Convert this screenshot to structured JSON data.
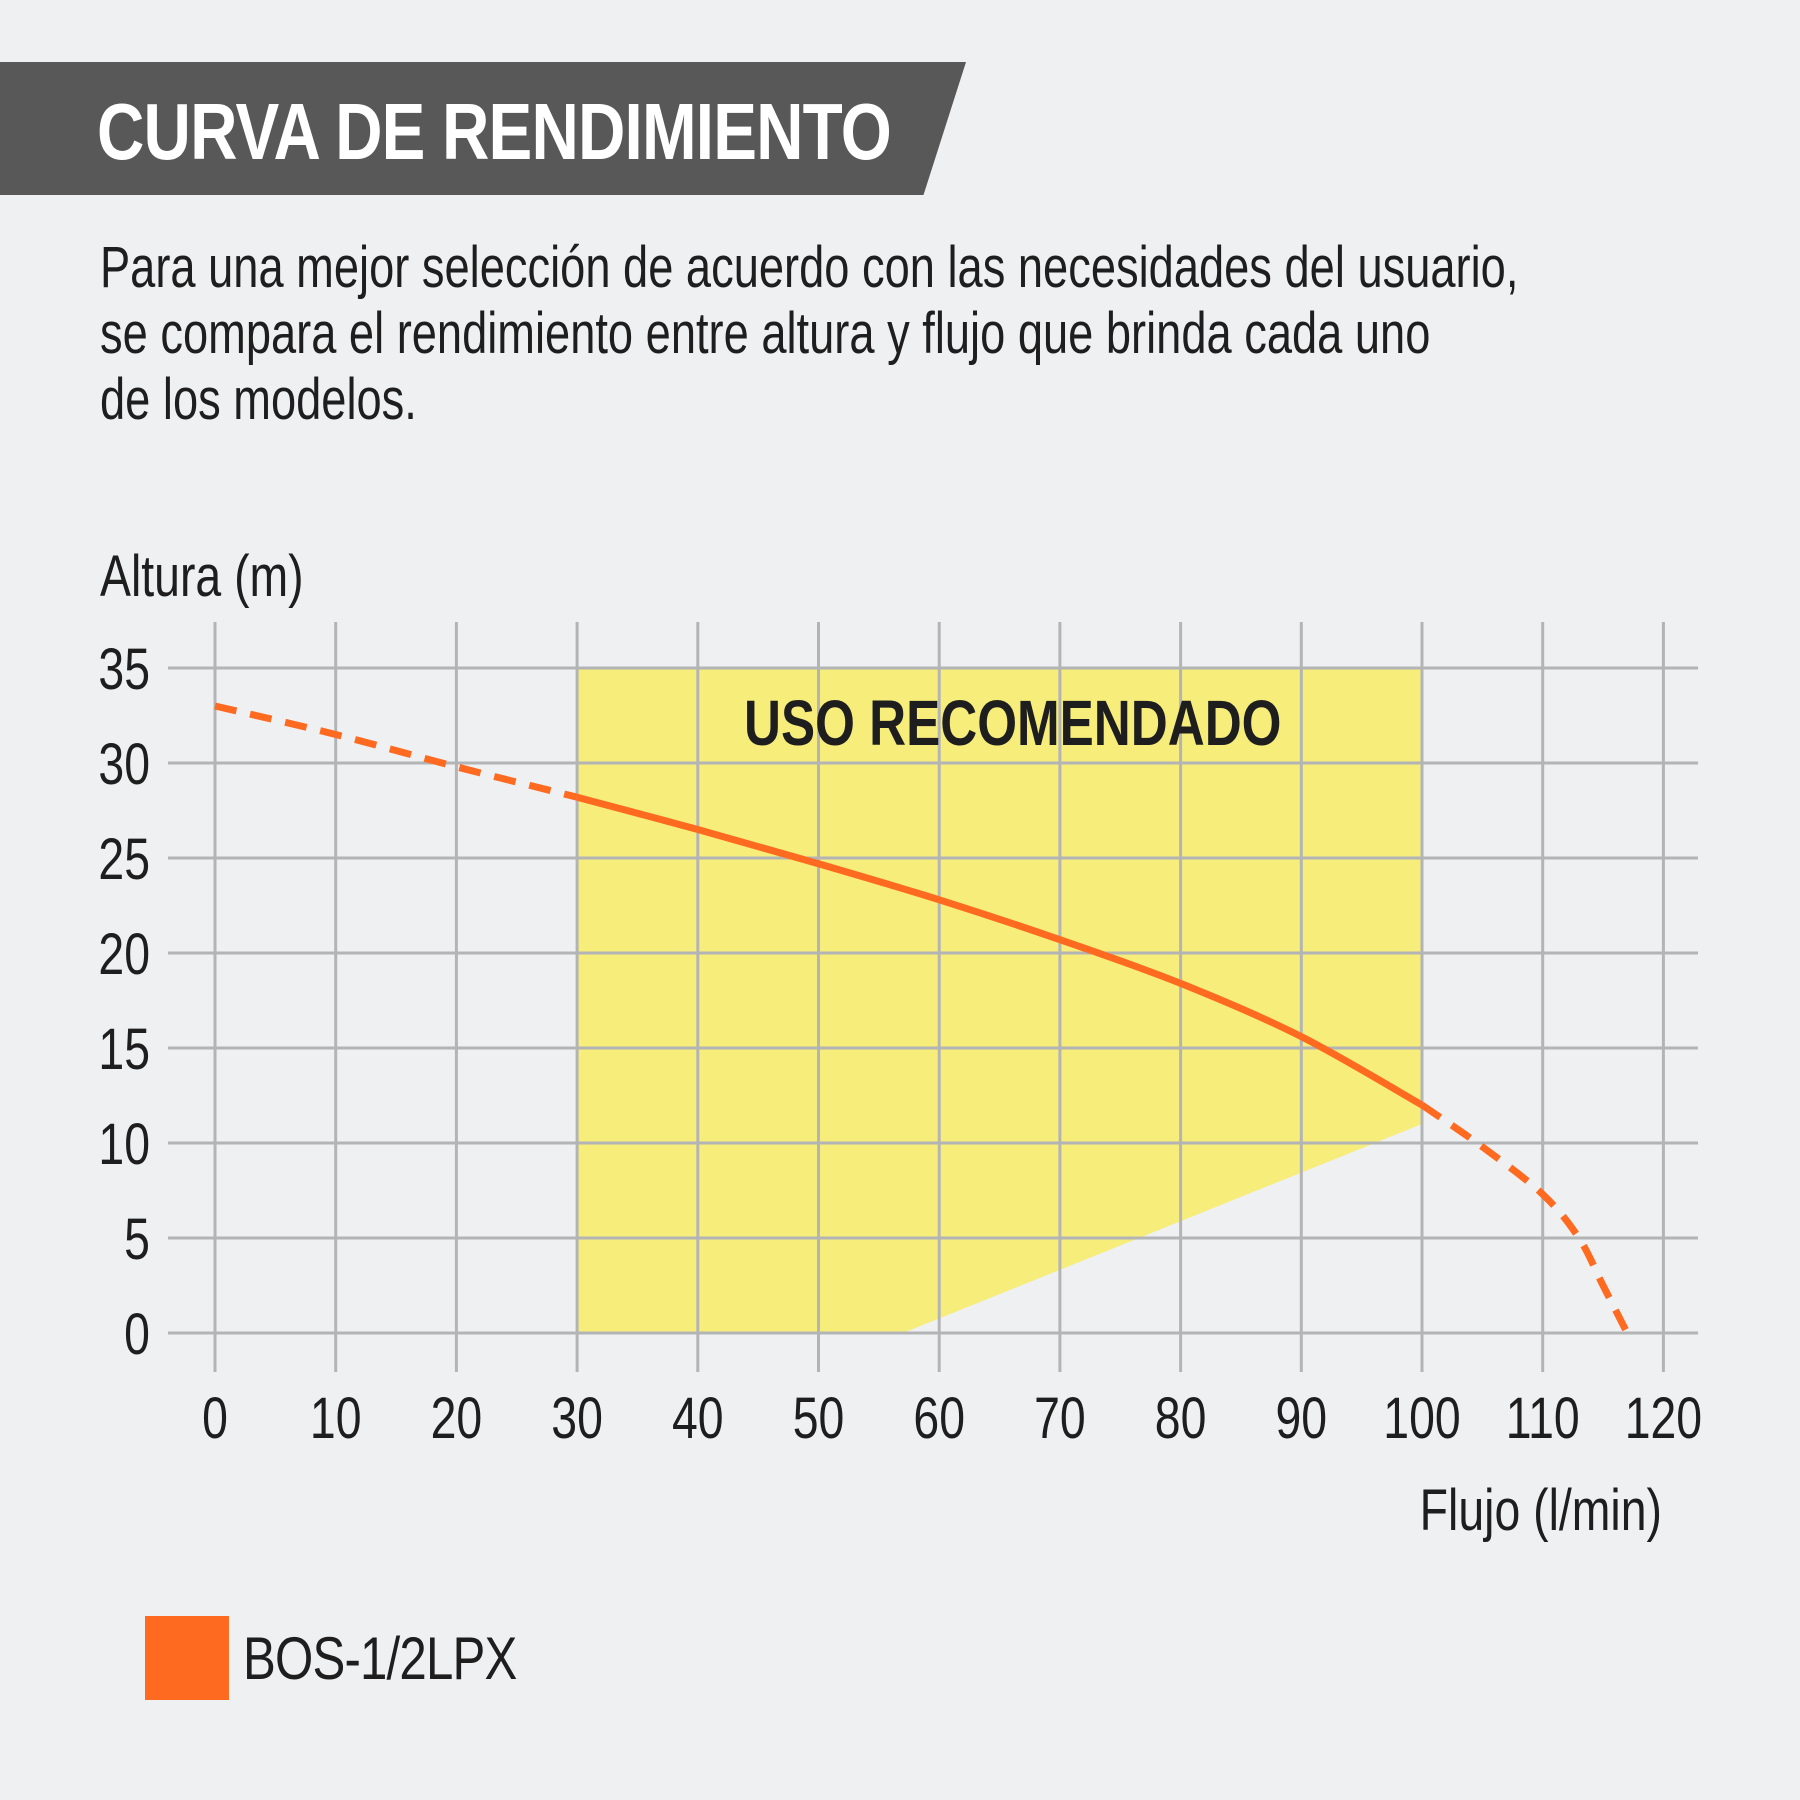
{
  "header": {
    "title": "CURVA DE RENDIMIENTO"
  },
  "description": {
    "lines": [
      "Para una mejor selección de acuerdo con las necesidades del usuario,",
      "se compara el rendimiento entre altura y flujo que brinda cada uno",
      "de los modelos."
    ]
  },
  "colors": {
    "background": "#eff0f2",
    "banner": "#585858",
    "grid": "#b3b4b6",
    "recommended_zone": "#f7ed7a",
    "curve": "#ff6a21",
    "text": "#1e1e1e"
  },
  "chart_data": {
    "type": "line",
    "title": "CURVA DE RENDIMIENTO",
    "xlabel": "Flujo (l/min)",
    "ylabel": "Altura (m)",
    "xlim": [
      0,
      120
    ],
    "ylim": [
      0,
      35
    ],
    "x_ticks": [
      0,
      10,
      20,
      30,
      40,
      50,
      60,
      70,
      80,
      90,
      100,
      110,
      120
    ],
    "y_ticks": [
      0,
      5,
      10,
      15,
      20,
      25,
      30,
      35
    ],
    "grid": true,
    "legend_position": "bottom-left",
    "annotations": [
      {
        "text": "USO RECOMENDADO",
        "type": "shaded_region",
        "polygon": [
          [
            30,
            35
          ],
          [
            100,
            35
          ],
          [
            100,
            11
          ],
          [
            57,
            0
          ],
          [
            30,
            0
          ]
        ]
      }
    ],
    "series": [
      {
        "name": "BOS-1/2LPX",
        "color": "#ff6a21",
        "x": [
          0,
          10,
          20,
          30,
          40,
          50,
          60,
          70,
          80,
          90,
          100,
          105,
          110,
          113,
          115,
          117
        ],
        "y": [
          33,
          31.5,
          29.8,
          28.2,
          26.5,
          24.7,
          22.8,
          20.7,
          18.4,
          15.6,
          12.0,
          9.8,
          7.3,
          5.0,
          2.5,
          0
        ],
        "segments": [
          {
            "style": "dashed",
            "x_range": [
              0,
              30
            ]
          },
          {
            "style": "solid",
            "x_range": [
              30,
              100
            ]
          },
          {
            "style": "dashed",
            "x_range": [
              100,
              117
            ]
          }
        ]
      }
    ]
  },
  "legend": {
    "items": [
      {
        "label": "BOS-1/2LPX",
        "color": "#ff6a21"
      }
    ]
  }
}
